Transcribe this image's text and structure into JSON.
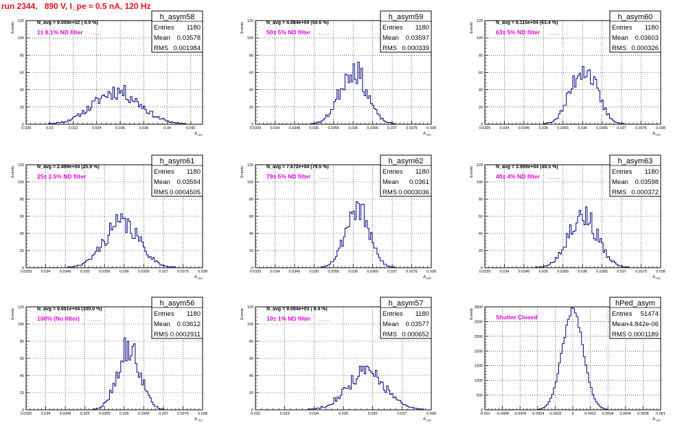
{
  "page_title": "run 2344,   890 V, I_pe ≈ 0.5 nA, 120 Hz",
  "colors": {
    "histogram": "#000080",
    "title_text": "#e8101c",
    "annotation": "#e000e0",
    "frame": "#000000",
    "grid": "#000000"
  },
  "stats_labels": {
    "entries": "Entries",
    "mean": "Mean",
    "rms": "RMS"
  },
  "chart_data": [
    {
      "type": "histogram",
      "name": "h_asym58",
      "navg": "N_avg = 9.009e+02 ( 0.9 %)",
      "note": "1± 0.1% ND filter",
      "stats": {
        "entries": "1180",
        "mean": "0.03578",
        "rms": "0.001984"
      },
      "ylabel": "Events",
      "xlabel": "A",
      "xlabel_sub": "LED",
      "xlim": [
        0.028,
        0.043
      ],
      "ylim": [
        0,
        120
      ],
      "xticks": [
        "0.028",
        "0.03",
        "0.032",
        "0.034",
        "0.036",
        "0.038",
        "0.04",
        "0.042"
      ],
      "yticks": [
        "0",
        "20",
        "40",
        "60",
        "80",
        "100",
        "120"
      ],
      "grid": true,
      "shape": {
        "kind": "gauss",
        "mean": 0.0357,
        "sigma": 0.002,
        "peak": 38,
        "nbins": 110,
        "noise": 0.25,
        "seed": 11
      }
    },
    {
      "type": "histogram",
      "name": "h_asym59",
      "navg": "N_avg = 4.884e+04 (50.6 %)",
      "note": "50± 5% ND filter",
      "stats": {
        "entries": "1180",
        "mean": "0.03597",
        "rms": "0.000339"
      },
      "ylabel": "Events",
      "xlabel": "A",
      "xlabel_sub": "LED",
      "xlim": [
        0.0335,
        0.038
      ],
      "ylim": [
        0,
        120
      ],
      "xticks": [
        "0.0335",
        "0.034",
        "0.0345",
        "0.035",
        "0.0355",
        "0.036",
        "0.0365",
        "0.037",
        "0.0375",
        "0.038"
      ],
      "yticks": [
        "0",
        "20",
        "40",
        "60",
        "80",
        "100",
        "120"
      ],
      "grid": true,
      "shape": {
        "kind": "gauss",
        "mean": 0.036,
        "sigma": 0.00034,
        "peak": 64,
        "nbins": 110,
        "noise": 0.25,
        "seed": 23
      }
    },
    {
      "type": "histogram",
      "name": "h_asym60",
      "navg": "N_avg = 6.115e+04 (63.4 %)",
      "note": "63± 5% ND filter",
      "stats": {
        "entries": "1180",
        "mean": "0.03603",
        "rms": "0.000326"
      },
      "ylabel": "Events",
      "xlabel": "A",
      "xlabel_sub": "LED",
      "xlim": [
        0.0335,
        0.038
      ],
      "ylim": [
        0,
        120
      ],
      "xticks": [
        "0.0335",
        "0.034",
        "0.0345",
        "0.035",
        "0.0355",
        "0.036",
        "0.0365",
        "0.037",
        "0.0375",
        "0.038"
      ],
      "yticks": [
        "0",
        "20",
        "40",
        "60",
        "80",
        "100",
        "120"
      ],
      "grid": true,
      "shape": {
        "kind": "gauss",
        "mean": 0.03603,
        "sigma": 0.00033,
        "peak": 66,
        "nbins": 110,
        "noise": 0.25,
        "seed": 37
      }
    },
    {
      "type": "histogram",
      "name": "h_asym61",
      "navg": "N_avg = 2.499e+04 (25.9 %)",
      "note": "25± 2.5% ND filter",
      "stats": {
        "entries": "1180",
        "mean": "0.03594",
        "rms": "0.0004505"
      },
      "ylabel": "Events",
      "xlabel": "A",
      "xlabel_sub": "LED",
      "xlim": [
        0.0335,
        0.038
      ],
      "ylim": [
        0,
        120
      ],
      "xticks": [
        "0.0335",
        "0.034",
        "0.0345",
        "0.035",
        "0.0355",
        "0.036",
        "0.0365",
        "0.037",
        "0.0375",
        "0.038"
      ],
      "yticks": [
        "0",
        "20",
        "40",
        "60",
        "80",
        "100",
        "120"
      ],
      "grid": true,
      "shape": {
        "kind": "gauss",
        "mean": 0.03594,
        "sigma": 0.00045,
        "peak": 52,
        "nbins": 110,
        "noise": 0.25,
        "seed": 41
      }
    },
    {
      "type": "histogram",
      "name": "h_asym62",
      "navg": "N_avg = 7.672e+04 (79.5 %)",
      "note": "79± 5% ND filter",
      "stats": {
        "entries": "1180",
        "mean": "0.0361",
        "rms": "0.0003036"
      },
      "ylabel": "Events",
      "xlabel": "A",
      "xlabel_sub": "LED",
      "xlim": [
        0.0335,
        0.038
      ],
      "ylim": [
        0,
        120
      ],
      "xticks": [
        "0.0335",
        "0.034",
        "0.0345",
        "0.035",
        "0.0355",
        "0.036",
        "0.0365",
        "0.037",
        "0.0375",
        "0.038"
      ],
      "yticks": [
        "0",
        "20",
        "40",
        "60",
        "80",
        "100",
        "120"
      ],
      "grid": true,
      "shape": {
        "kind": "gauss",
        "mean": 0.0361,
        "sigma": 0.0003,
        "peak": 70,
        "nbins": 110,
        "noise": 0.25,
        "seed": 53
      }
    },
    {
      "type": "histogram",
      "name": "h_asym63",
      "navg": "N_avg = 3.909e+04 (40.5 %)",
      "note": "40± 4% ND filter",
      "stats": {
        "entries": "1180",
        "mean": "0.03598",
        "rms": "0.000372"
      },
      "ylabel": "Events",
      "xlabel": "A",
      "xlabel_sub": "LED",
      "xlim": [
        0.0335,
        0.038
      ],
      "ylim": [
        0,
        120
      ],
      "xticks": [
        "0.0335",
        "0.034",
        "0.0345",
        "0.035",
        "0.0355",
        "0.036",
        "0.0365",
        "0.037",
        "0.0375",
        "0.038"
      ],
      "yticks": [
        "0",
        "20",
        "40",
        "60",
        "80",
        "100",
        "120"
      ],
      "grid": true,
      "shape": {
        "kind": "gauss",
        "mean": 0.036,
        "sigma": 0.00037,
        "peak": 62,
        "nbins": 110,
        "noise": 0.25,
        "seed": 67
      }
    },
    {
      "type": "histogram",
      "name": "h_asym56",
      "navg": "N_avg = 9.651e+04 (100.0 %)",
      "note": "100% (No filter)",
      "stats": {
        "entries": "1180",
        "mean": "0.03612",
        "rms": "0.0002911"
      },
      "ylabel": "Events",
      "xlabel": "A",
      "xlabel_sub": "LED",
      "xlim": [
        0.0335,
        0.038
      ],
      "ylim": [
        0,
        120
      ],
      "xticks": [
        "0.0335",
        "0.034",
        "0.0345",
        "0.035",
        "0.0355",
        "0.036",
        "0.0365",
        "0.037",
        "0.0375",
        "0.038"
      ],
      "yticks": [
        "0",
        "20",
        "40",
        "60",
        "80",
        "100",
        "120"
      ],
      "grid": true,
      "shape": {
        "kind": "gauss",
        "mean": 0.03612,
        "sigma": 0.00029,
        "peak": 72,
        "nbins": 110,
        "noise": 0.25,
        "seed": 79
      }
    },
    {
      "type": "histogram",
      "name": "h_asym57",
      "navg": "N_avg = 9.084e+03 ( 9.4 %)",
      "note": "10± 1% ND filter",
      "stats": {
        "entries": "1180",
        "mean": "0.03577",
        "rms": "0.000652"
      },
      "ylabel": "Events",
      "xlabel": "A",
      "xlabel_sub": "LED",
      "xlim": [
        0.032,
        0.038
      ],
      "ylim": [
        0,
        120
      ],
      "xticks": [
        "0.032",
        "0.033",
        "0.034",
        "0.035",
        "0.036",
        "0.037",
        "0.038"
      ],
      "yticks": [
        "0",
        "20",
        "40",
        "60",
        "80",
        "100",
        "120"
      ],
      "grid": true,
      "shape": {
        "kind": "gauss",
        "mean": 0.03577,
        "sigma": 0.00065,
        "peak": 44,
        "nbins": 110,
        "noise": 0.25,
        "seed": 83
      }
    },
    {
      "type": "histogram",
      "name": "hPed_asym",
      "navg": "",
      "note": "Shutter Closed",
      "stats": {
        "entries": "51474",
        "mean": "-4.842e-06",
        "rms": "0.0001189"
      },
      "ylabel": "Events",
      "xlabel": "A",
      "xlabel_sub": "LED",
      "xlim": [
        -0.001,
        0.001
      ],
      "ylim": [
        0,
        3500
      ],
      "xticks": [
        "-0.001",
        "-0.0008",
        "-0.0006",
        "-0.0004",
        "-0.0002",
        "0",
        "0.0002",
        "0.0004",
        "0.0006",
        "0.0008",
        "0.001"
      ],
      "yticks": [
        "0",
        "500",
        "1000",
        "1500",
        "2000",
        "2500",
        "3000",
        "3500"
      ],
      "grid": true,
      "shape": {
        "kind": "gauss",
        "mean": 0,
        "sigma": 0.00012,
        "peak": 3380,
        "nbins": 100,
        "noise": 0.04,
        "seed": 97
      }
    }
  ]
}
